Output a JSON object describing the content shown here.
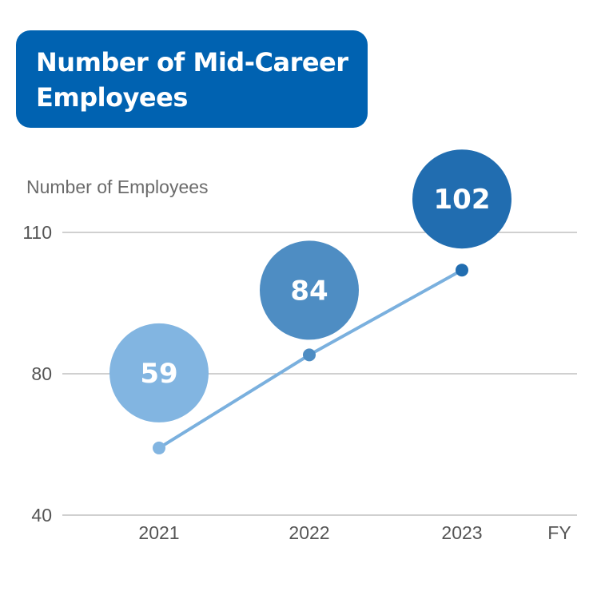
{
  "title": "Number of Mid-Career Employees",
  "chart_data": {
    "type": "line",
    "title": "Number of Mid-Career Employees",
    "ylabel": "Number of Employees",
    "xlabel": "FY",
    "categories": [
      "2021",
      "2022",
      "2023"
    ],
    "values": [
      59,
      84,
      102
    ],
    "ylim": [
      40,
      110
    ],
    "yticks": [
      40,
      80,
      110
    ],
    "grid": true,
    "colors": {
      "line": "#7ab0de",
      "bubbles": [
        "#82b5e1",
        "#4e8dc3",
        "#216db0"
      ],
      "points": [
        "#82b5e1",
        "#4e8dc3",
        "#216db0"
      ],
      "gridline": "#b5b5b5",
      "title_background": "#0062b1"
    }
  }
}
